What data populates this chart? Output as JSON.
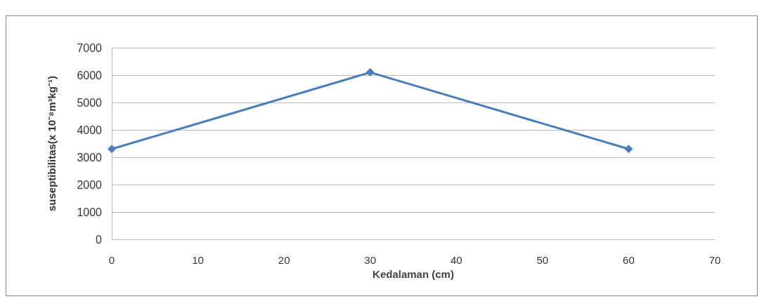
{
  "chart_data": {
    "type": "line",
    "xlabel": "Kedalaman (cm)",
    "ylabel": "suseptibilitas(x 10⁻⁸m³kg⁻¹)",
    "x": [
      0,
      30,
      60
    ],
    "series": [
      {
        "color": "#4a7ebb",
        "values": [
          3300,
          6100,
          3300
        ]
      }
    ],
    "xlim": [
      0,
      70
    ],
    "xticks": [
      0,
      10,
      20,
      30,
      40,
      50,
      60,
      70
    ],
    "ylim": [
      0,
      7000
    ],
    "yticks": [
      0,
      1000,
      2000,
      3000,
      4000,
      5000,
      6000,
      7000
    ],
    "grid": "y",
    "marker": "diamond",
    "line_style": "solid"
  }
}
